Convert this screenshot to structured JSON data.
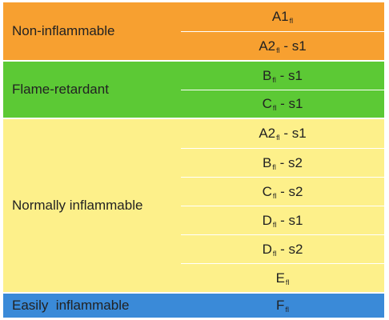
{
  "colors": {
    "orange": "#f7a030",
    "green": "#5cc935",
    "yellow": "#fdf08a",
    "blue": "#3a8ad8"
  },
  "groups": [
    {
      "label": "Non-inflammable",
      "rows": [
        {
          "main": "A1",
          "sub": "fl",
          "suffix": ""
        },
        {
          "main": "A2",
          "sub": "fl",
          "suffix": " - s1"
        }
      ]
    },
    {
      "label": "Flame-retardant",
      "rows": [
        {
          "main": "B",
          "sub": "fl",
          "suffix": " - s1"
        },
        {
          "main": "C",
          "sub": "fl",
          "suffix": " - s1"
        }
      ]
    },
    {
      "label": "Normally inflammable",
      "rows": [
        {
          "main": "A2",
          "sub": "fl",
          "suffix": " - s1"
        },
        {
          "main": "B",
          "sub": "fl",
          "suffix": " - s2"
        },
        {
          "main": "C",
          "sub": "fl",
          "suffix": " - s2"
        },
        {
          "main": "D",
          "sub": "fl",
          "suffix": " - s1"
        },
        {
          "main": "D",
          "sub": "fl",
          "suffix": " - s2"
        },
        {
          "main": "E",
          "sub": "fl",
          "suffix": ""
        }
      ]
    },
    {
      "label": "Easily  inflammable",
      "rows": [
        {
          "main": "F",
          "sub": "fl",
          "suffix": ""
        }
      ]
    }
  ]
}
